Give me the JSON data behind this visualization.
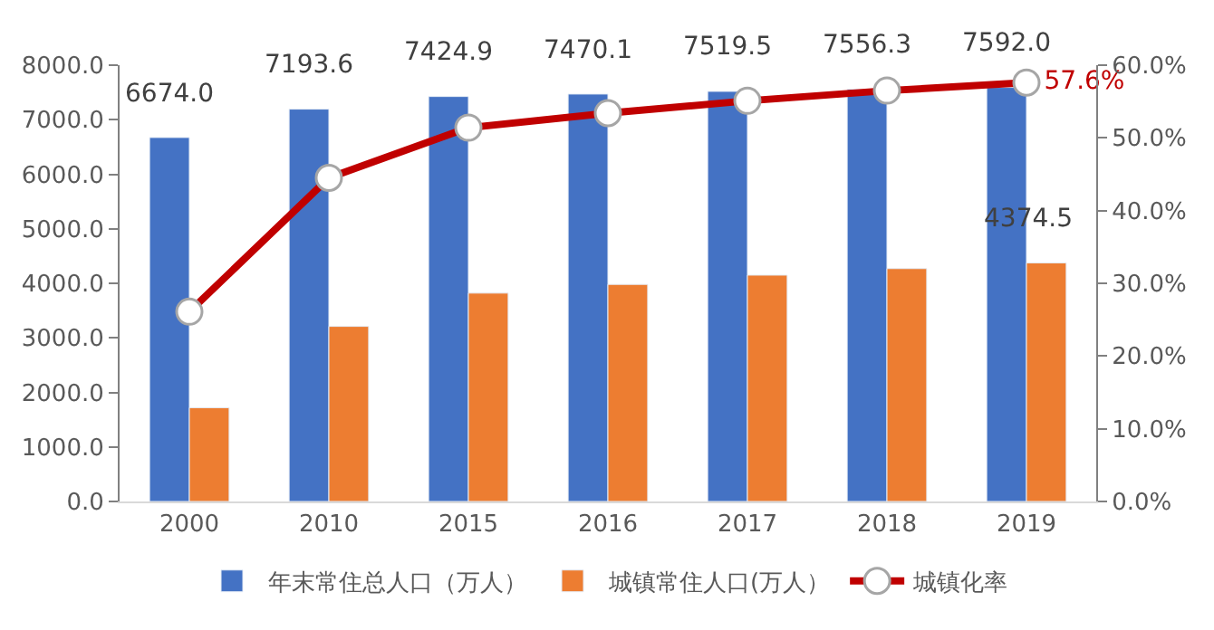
{
  "chart_data": {
    "type": "bar",
    "categories": [
      "2000",
      "2010",
      "2015",
      "2016",
      "2017",
      "2018",
      "2019"
    ],
    "series": [
      {
        "name": "年末常住总人口（万人）",
        "color": "#4472c4",
        "values": [
          6674.0,
          7193.6,
          7424.9,
          7470.1,
          7519.5,
          7556.3,
          7592.0
        ],
        "value_labels": [
          "6674.0",
          "7193.6",
          "7424.9",
          "7470.1",
          "7519.5",
          "7556.3",
          "7592.0"
        ]
      },
      {
        "name": "城镇常住人口(万人）",
        "color": "#ed7d31",
        "values": [
          1720,
          3210,
          3820,
          3980,
          4150,
          4270,
          4374.5
        ],
        "value_labels": [
          null,
          null,
          null,
          null,
          null,
          null,
          "4374.5"
        ]
      },
      {
        "name": "城镇化率",
        "type": "line",
        "axis": "y2",
        "color": "#c00000",
        "marker": "circle",
        "values": [
          26.1,
          44.5,
          51.4,
          53.4,
          55.1,
          56.5,
          57.6
        ],
        "value_labels": [
          null,
          null,
          null,
          null,
          null,
          null,
          "57.6%"
        ]
      }
    ],
    "ylim": [
      0,
      8000
    ],
    "yticks": [
      {
        "value": 0,
        "label": "0.0"
      },
      {
        "value": 1000,
        "label": "1000.0"
      },
      {
        "value": 2000,
        "label": "2000.0"
      },
      {
        "value": 3000,
        "label": "3000.0"
      },
      {
        "value": 4000,
        "label": "4000.0"
      },
      {
        "value": 5000,
        "label": "5000.0"
      },
      {
        "value": 6000,
        "label": "6000.0"
      },
      {
        "value": 7000,
        "label": "7000.0"
      },
      {
        "value": 8000,
        "label": "8000.0"
      }
    ],
    "y2lim": [
      0,
      60
    ],
    "y2ticks": [
      {
        "value": 0,
        "label": "0.0%"
      },
      {
        "value": 10,
        "label": "10.0%"
      },
      {
        "value": 20,
        "label": "20.0%"
      },
      {
        "value": 30,
        "label": "30.0%"
      },
      {
        "value": 40,
        "label": "40.0%"
      },
      {
        "value": 50,
        "label": "50.0%"
      },
      {
        "value": 60,
        "label": "60.0%"
      }
    ],
    "legend": "bottom"
  }
}
